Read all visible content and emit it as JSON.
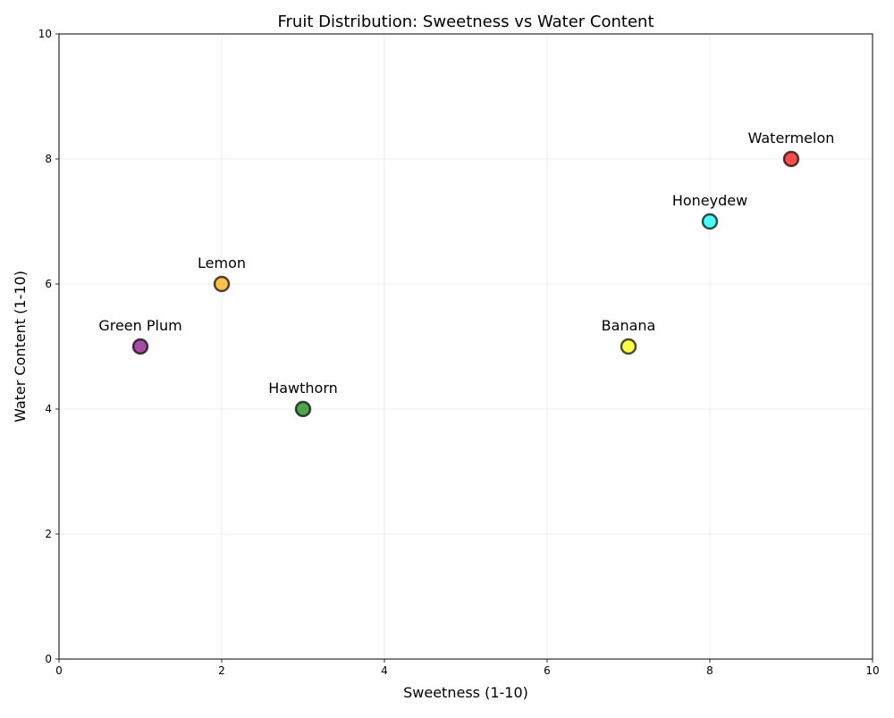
{
  "chart_data": {
    "type": "scatter",
    "title": "Fruit Distribution: Sweetness vs Water Content",
    "xlabel": "Sweetness (1-10)",
    "ylabel": "Water Content (1-10)",
    "xlim": [
      0,
      10
    ],
    "ylim": [
      0,
      10
    ],
    "xticks": [
      0,
      2,
      4,
      6,
      8,
      10
    ],
    "yticks": [
      0,
      2,
      4,
      6,
      8,
      10
    ],
    "grid": true,
    "points": [
      {
        "label": "Watermelon",
        "x": 9,
        "y": 8,
        "color": "#ff0000"
      },
      {
        "label": "Honeydew",
        "x": 8,
        "y": 7,
        "color": "#00ffff"
      },
      {
        "label": "Lemon",
        "x": 2,
        "y": 6,
        "color": "#ffa500"
      },
      {
        "label": "Green Plum",
        "x": 1,
        "y": 5,
        "color": "#800080"
      },
      {
        "label": "Banana",
        "x": 7,
        "y": 5,
        "color": "#ffff00"
      },
      {
        "label": "Hawthorn",
        "x": 3,
        "y": 4,
        "color": "#008000"
      }
    ]
  }
}
